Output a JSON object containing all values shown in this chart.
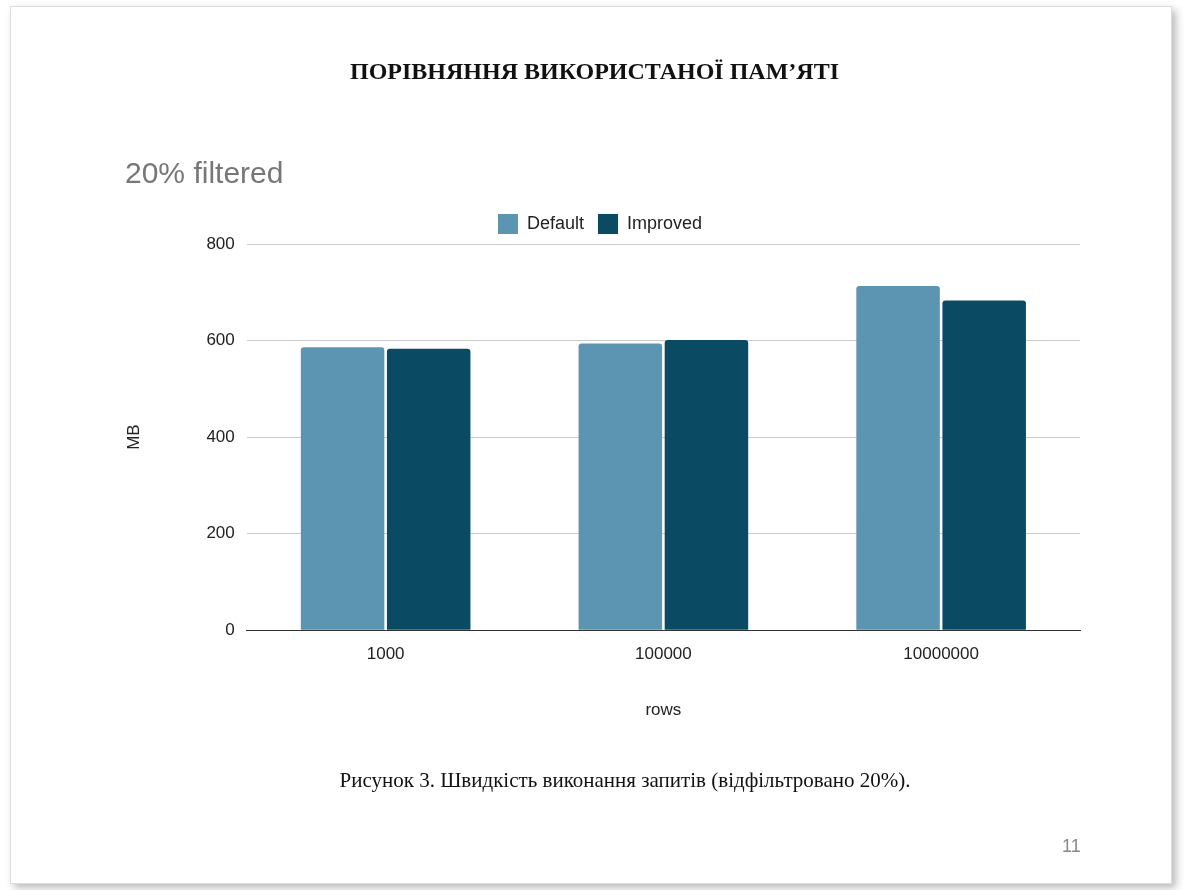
{
  "chart_data": {
    "type": "bar",
    "title": "ПОРІВНЯННЯ ВИКОРИСТАНОЇ ПАМ’ЯТІ",
    "subtitle": "20% filtered",
    "xlabel": "rows",
    "ylabel": "MB",
    "categories": [
      "1000",
      "100000",
      "10000000"
    ],
    "series": [
      {
        "name": "Default",
        "color": "#5b95b2",
        "values": [
          586,
          594,
          713
        ]
      },
      {
        "name": "Improved",
        "color": "#0a4a63",
        "values": [
          583,
          601,
          683
        ]
      }
    ],
    "ylim": [
      0,
      800
    ],
    "yticks": [
      0,
      200,
      400,
      600,
      800
    ],
    "grid": "y",
    "legend": "top",
    "annotations": [
      "Рисунок 3. Швидкість виконання запитів (відфільтровано 20%).",
      "11"
    ]
  }
}
